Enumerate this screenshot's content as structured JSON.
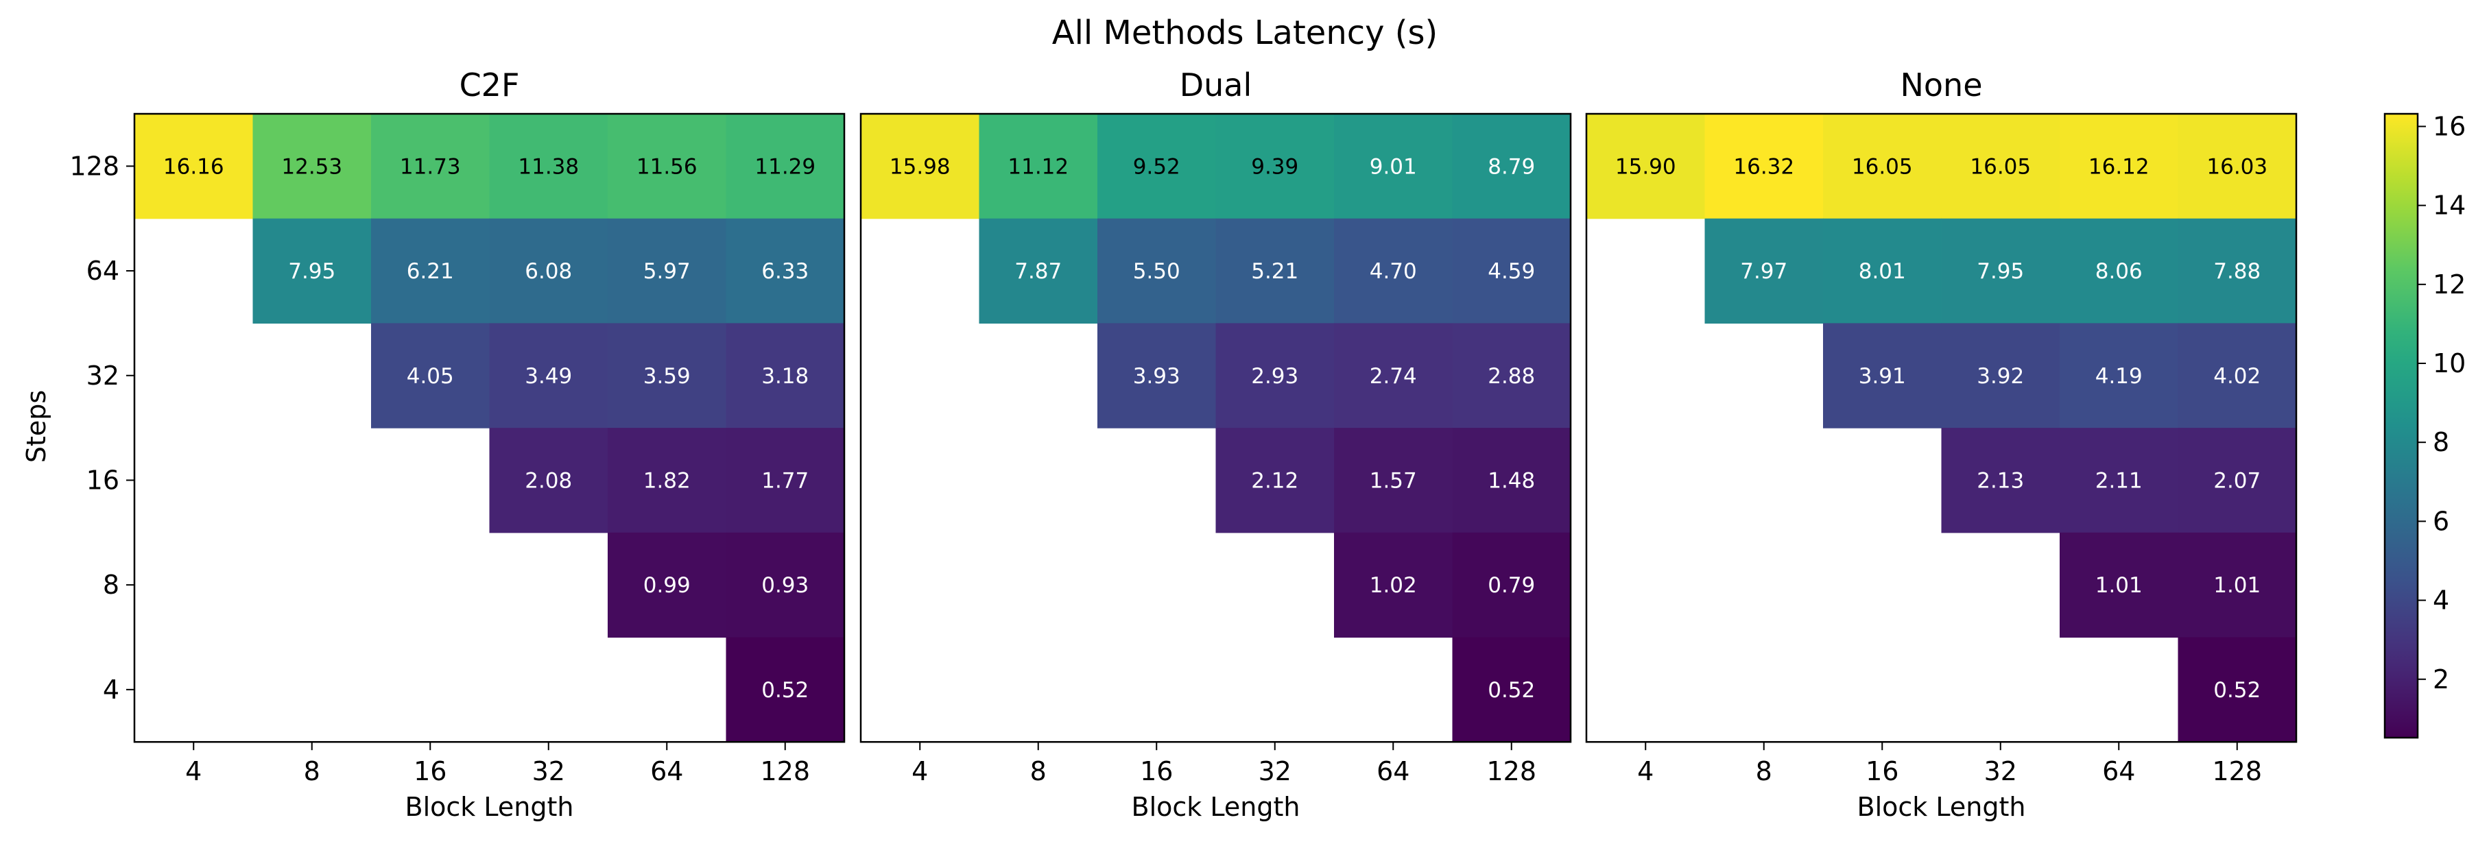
{
  "chart_data": {
    "type": "heatmap",
    "title": "All Methods Latency (s)",
    "xlabel": "Block Length",
    "ylabel": "Steps",
    "x_categories": [
      "4",
      "8",
      "16",
      "32",
      "64",
      "128"
    ],
    "y_categories": [
      "128",
      "64",
      "32",
      "16",
      "8",
      "4"
    ],
    "colormap": "viridis",
    "colorbar": {
      "range": [
        0.52,
        16.32
      ],
      "ticks": [
        2,
        4,
        6,
        8,
        10,
        12,
        14,
        16
      ]
    },
    "panels": [
      {
        "name": "C2F",
        "values": [
          [
            16.16,
            12.53,
            11.73,
            11.38,
            11.56,
            11.29
          ],
          [
            null,
            7.95,
            6.21,
            6.08,
            5.97,
            6.33
          ],
          [
            null,
            null,
            4.05,
            3.49,
            3.59,
            3.18
          ],
          [
            null,
            null,
            null,
            2.08,
            1.82,
            1.77
          ],
          [
            null,
            null,
            null,
            null,
            0.99,
            0.93
          ],
          [
            null,
            null,
            null,
            null,
            null,
            0.52
          ]
        ],
        "labels": [
          [
            "16.16",
            "12.53",
            "11.73",
            "11.38",
            "11.56",
            "11.29"
          ],
          [
            null,
            "7.95",
            "6.21",
            "6.08",
            "5.97",
            "6.33"
          ],
          [
            null,
            null,
            "4.05",
            "3.49",
            "3.59",
            "3.18"
          ],
          [
            null,
            null,
            null,
            "2.08",
            "1.82",
            "1.77"
          ],
          [
            null,
            null,
            null,
            null,
            "0.99",
            "0.93"
          ],
          [
            null,
            null,
            null,
            null,
            null,
            "0.52"
          ]
        ]
      },
      {
        "name": "Dual",
        "values": [
          [
            15.98,
            11.12,
            9.52,
            9.39,
            9.01,
            8.79
          ],
          [
            null,
            7.87,
            5.5,
            5.21,
            4.7,
            4.59
          ],
          [
            null,
            null,
            3.93,
            2.93,
            2.74,
            2.88
          ],
          [
            null,
            null,
            null,
            2.12,
            1.57,
            1.48
          ],
          [
            null,
            null,
            null,
            null,
            1.02,
            0.79
          ],
          [
            null,
            null,
            null,
            null,
            null,
            0.52
          ]
        ],
        "labels": [
          [
            "15.98",
            "11.12",
            "9.52",
            "9.39",
            "9.01",
            "8.79"
          ],
          [
            null,
            "7.87",
            "5.50",
            "5.21",
            "4.70",
            "4.59"
          ],
          [
            null,
            null,
            "3.93",
            "2.93",
            "2.74",
            "2.88"
          ],
          [
            null,
            null,
            null,
            "2.12",
            "1.57",
            "1.48"
          ],
          [
            null,
            null,
            null,
            null,
            "1.02",
            "0.79"
          ],
          [
            null,
            null,
            null,
            null,
            null,
            "0.52"
          ]
        ]
      },
      {
        "name": "None",
        "values": [
          [
            15.9,
            16.32,
            16.05,
            16.05,
            16.12,
            16.03
          ],
          [
            null,
            7.97,
            8.01,
            7.95,
            8.06,
            7.88
          ],
          [
            null,
            null,
            3.91,
            3.92,
            4.19,
            4.02
          ],
          [
            null,
            null,
            null,
            2.13,
            2.11,
            2.07
          ],
          [
            null,
            null,
            null,
            null,
            1.01,
            1.01
          ],
          [
            null,
            null,
            null,
            null,
            null,
            0.52
          ]
        ],
        "labels": [
          [
            "15.90",
            "16.32",
            "16.05",
            "16.05",
            "16.12",
            "16.03"
          ],
          [
            null,
            "7.97",
            "8.01",
            "7.95",
            "8.06",
            "7.88"
          ],
          [
            null,
            null,
            "3.91",
            "3.92",
            "4.19",
            "4.02"
          ],
          [
            null,
            null,
            null,
            "2.13",
            "2.11",
            "2.07"
          ],
          [
            null,
            null,
            null,
            null,
            "1.01",
            "1.01"
          ],
          [
            null,
            null,
            null,
            null,
            null,
            "0.52"
          ]
        ]
      }
    ]
  }
}
